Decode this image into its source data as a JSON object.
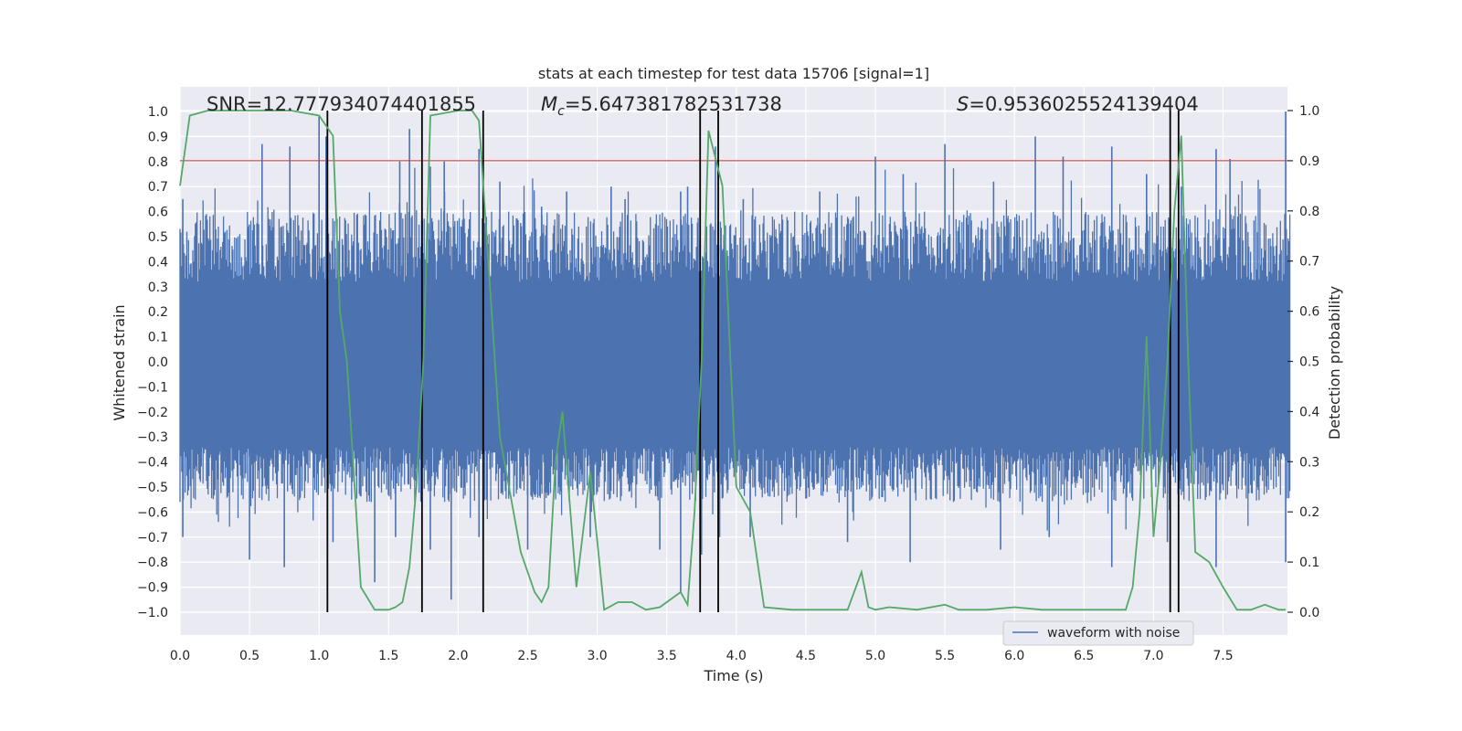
{
  "chart_data": {
    "type": "line",
    "title": "stats at each timestep for test data 15706 [signal=1]",
    "xlabel": "Time (s)",
    "ylabel_left": "Whitened strain",
    "ylabel_right": "Detection probability",
    "xlim": [
      0,
      7.98
    ],
    "ylim_left": [
      -1.05,
      1.05
    ],
    "ylim_right": [
      -0.05,
      1.05
    ],
    "x_ticks": [
      "0.0",
      "0.5",
      "1.0",
      "1.5",
      "2.0",
      "2.5",
      "3.0",
      "3.5",
      "4.0",
      "4.5",
      "5.0",
      "5.5",
      "6.0",
      "6.5",
      "7.0",
      "7.5"
    ],
    "y_left_ticks": [
      "1.0",
      "0.9",
      "0.8",
      "0.7",
      "0.6",
      "0.5",
      "0.4",
      "0.3",
      "0.2",
      "0.1",
      "0.0",
      "-0.1",
      "-0.2",
      "-0.3",
      "-0.4",
      "-0.5",
      "-0.6",
      "-0.7",
      "-0.8",
      "-0.9",
      "-1.0"
    ],
    "y_right_ticks": [
      "1.0",
      "0.9",
      "0.8",
      "0.7",
      "0.6",
      "0.5",
      "0.4",
      "0.3",
      "0.2",
      "0.1",
      "0.0"
    ],
    "grid": true,
    "legend_position": "bottom-right",
    "annotations": {
      "snr": "SNR=12.777934074401855",
      "mc_symbol": "M",
      "mc_sub": "c",
      "mc_value": "=5.647381782531738",
      "s_symbol": "S",
      "s_value": "=0.9536025524139404"
    },
    "series": [
      {
        "name": "waveform with noise",
        "axis": "left",
        "color": "#4c72b0",
        "description_values": "whitened strain noise roughly between -0.95 and 1.0",
        "peaks_x": [
          0.02,
          0.59,
          0.79,
          1.0,
          1.05,
          1.58,
          1.65,
          1.8,
          1.9,
          2.15,
          2.3,
          2.6,
          2.78,
          3.1,
          3.2,
          3.6,
          3.65,
          3.85,
          4.05,
          4.6,
          5.0,
          5.2,
          5.5,
          5.85,
          6.15,
          6.35,
          6.7,
          6.95,
          7.2,
          7.45,
          7.55,
          7.95
        ],
        "peaks_y": [
          0.65,
          0.87,
          0.86,
          0.98,
          0.9,
          0.8,
          0.93,
          0.78,
          0.8,
          0.85,
          0.72,
          0.62,
          0.68,
          0.7,
          0.65,
          0.68,
          0.7,
          0.86,
          0.65,
          0.68,
          0.82,
          0.75,
          0.87,
          0.72,
          0.9,
          0.82,
          0.86,
          0.75,
          0.7,
          0.85,
          0.81,
          1.0
        ],
        "troughs_x": [
          0.02,
          0.5,
          0.75,
          1.1,
          1.4,
          1.55,
          1.8,
          1.95,
          2.15,
          2.5,
          2.95,
          3.45,
          3.6,
          3.75,
          3.88,
          4.1,
          4.8,
          5.25,
          5.9,
          6.25,
          6.7,
          7.1,
          7.45,
          7.95
        ],
        "troughs_y": [
          -0.7,
          -0.79,
          -0.82,
          -0.72,
          -0.88,
          -0.7,
          -0.75,
          -0.95,
          -0.7,
          -0.75,
          -0.7,
          -0.75,
          -0.92,
          -0.77,
          -0.7,
          -0.7,
          -0.72,
          -0.8,
          -0.75,
          -0.7,
          -0.82,
          -0.72,
          -0.82,
          -0.8
        ]
      },
      {
        "name": "",
        "axis": "right",
        "color": "#55a868",
        "x": [
          0.0,
          0.07,
          0.2,
          0.5,
          0.8,
          1.0,
          1.1,
          1.15,
          1.2,
          1.3,
          1.4,
          1.5,
          1.55,
          1.6,
          1.65,
          1.7,
          1.75,
          1.8,
          2.0,
          2.1,
          2.15,
          2.3,
          2.45,
          2.55,
          2.6,
          2.65,
          2.7,
          2.75,
          2.85,
          2.95,
          3.05,
          3.15,
          3.25,
          3.35,
          3.45,
          3.55,
          3.6,
          3.65,
          3.7,
          3.75,
          3.8,
          3.9,
          4.0,
          4.1,
          4.2,
          4.4,
          4.6,
          4.8,
          4.9,
          4.95,
          5.0,
          5.1,
          5.3,
          5.5,
          5.6,
          5.8,
          6.0,
          6.2,
          6.5,
          6.8,
          6.85,
          6.9,
          6.95,
          7.0,
          7.05,
          7.1,
          7.15,
          7.2,
          7.25,
          7.3,
          7.4,
          7.5,
          7.6,
          7.7,
          7.8,
          7.9,
          7.95
        ],
        "y": [
          0.85,
          0.99,
          1.0,
          1.0,
          1.0,
          0.99,
          0.95,
          0.6,
          0.5,
          0.05,
          0.005,
          0.005,
          0.01,
          0.02,
          0.09,
          0.25,
          0.5,
          0.99,
          1.0,
          1.0,
          0.98,
          0.35,
          0.12,
          0.04,
          0.02,
          0.05,
          0.3,
          0.4,
          0.05,
          0.28,
          0.005,
          0.02,
          0.02,
          0.005,
          0.01,
          0.03,
          0.04,
          0.015,
          0.2,
          0.5,
          0.96,
          0.85,
          0.25,
          0.2,
          0.01,
          0.005,
          0.005,
          0.005,
          0.08,
          0.01,
          0.005,
          0.01,
          0.005,
          0.015,
          0.005,
          0.005,
          0.01,
          0.005,
          0.005,
          0.005,
          0.05,
          0.2,
          0.55,
          0.15,
          0.3,
          0.5,
          0.8,
          0.95,
          0.5,
          0.12,
          0.1,
          0.05,
          0.005,
          0.005,
          0.015,
          0.005,
          0.005
        ]
      },
      {
        "name": "",
        "axis": "right",
        "color": "#c44e52",
        "type": "hline",
        "y": 0.9
      }
    ],
    "vlines": [
      1.06,
      1.74,
      2.18,
      3.74,
      3.87,
      7.12,
      7.18
    ],
    "vline_color": "#000000"
  },
  "legend": {
    "label": "waveform with noise"
  }
}
